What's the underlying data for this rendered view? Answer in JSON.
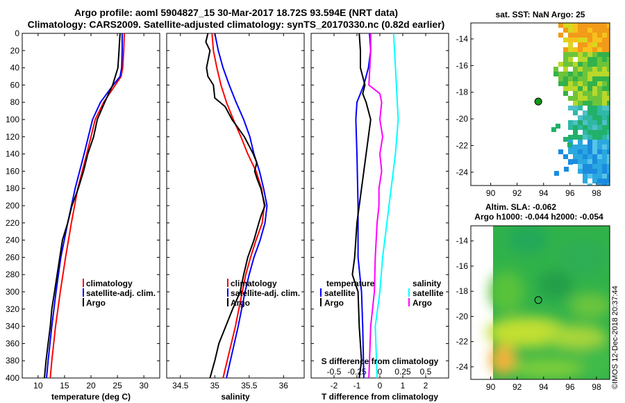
{
  "header": {
    "title_line1": "Argo profile: aoml 5904827_15 30-Mar-2017 18.72S 93.594E (NRT data)",
    "title_line2": "Climatology: CARS2009. Satellite-adjusted climatology: synTS_20170330.nc (0.82d earlier)"
  },
  "signature": "©IMOS 12-Dec-2018 20:37:44",
  "colors": {
    "climatology": "#ff0000",
    "satellite": "#0000ff",
    "argo": "#000000",
    "sat_T": "#00ffff",
    "argo_S": "#ff00ff"
  },
  "chart_data": [
    {
      "type": "line",
      "name": "temperature",
      "xlabel": "temperature (deg C)",
      "xlim": [
        7,
        33
      ],
      "ylim": [
        400,
        0
      ],
      "xticks": [
        10,
        15,
        20,
        25,
        30
      ],
      "yticks": [
        0,
        20,
        40,
        60,
        80,
        100,
        120,
        140,
        160,
        180,
        200,
        220,
        240,
        260,
        280,
        300,
        320,
        340,
        360,
        380,
        400
      ],
      "legend": [
        "climatology",
        "satellite-adj. clim.",
        "Argo"
      ],
      "series": [
        {
          "name": "climatology",
          "depth": [
            0,
            20,
            40,
            50,
            60,
            80,
            100,
            140,
            180,
            220,
            260,
            300,
            340,
            380,
            400
          ],
          "values": [
            26.3,
            26.2,
            26,
            25.7,
            24.6,
            22.4,
            20.8,
            19.2,
            17.5,
            16.3,
            15.2,
            14.2,
            13.3,
            12.6,
            12.3
          ]
        },
        {
          "name": "satellite-adj. clim.",
          "depth": [
            0,
            20,
            40,
            50,
            60,
            80,
            100,
            140,
            180,
            220,
            260,
            300,
            340,
            380,
            400
          ],
          "values": [
            25.9,
            25.9,
            25.8,
            25.5,
            24.2,
            21.8,
            20.3,
            18.7,
            17,
            15.6,
            14.3,
            13.4,
            12.6,
            11.9,
            11.6
          ]
        },
        {
          "name": "Argo",
          "depth": [
            0,
            10,
            20,
            40,
            60,
            80,
            100,
            120,
            140,
            160,
            180,
            200,
            220,
            240,
            260,
            280,
            300,
            320,
            340,
            360,
            380,
            400
          ],
          "values": [
            25.5,
            25.4,
            25.3,
            25.1,
            24.1,
            22.6,
            21.2,
            20.5,
            19.4,
            18.6,
            17.6,
            16.4,
            15.6,
            14.6,
            14.1,
            13.6,
            13.1,
            12.6,
            12.3,
            11.9,
            11.5,
            11.2
          ]
        }
      ]
    },
    {
      "type": "line",
      "name": "salinity",
      "xlabel": "salinity",
      "xlim": [
        34.3,
        36.3
      ],
      "ylim": [
        400,
        0
      ],
      "xticks": [
        34.5,
        35,
        35.5,
        36
      ],
      "xticklabels": [
        "34.5",
        "35",
        "35.5",
        "36"
      ],
      "legend": [
        "climatology",
        "satellite-adj. clim.",
        "Argo"
      ],
      "series": [
        {
          "name": "climatology",
          "depth": [
            0,
            20,
            40,
            60,
            80,
            100,
            120,
            140,
            160,
            180,
            200,
            220,
            240,
            260,
            280,
            300,
            340,
            400
          ],
          "values": [
            34.96,
            34.98,
            35.03,
            35.09,
            35.17,
            35.27,
            35.38,
            35.48,
            35.6,
            35.68,
            35.72,
            35.69,
            35.6,
            35.52,
            35.45,
            35.4,
            35.3,
            35.12
          ]
        },
        {
          "name": "satellite-adj. clim.",
          "depth": [
            0,
            20,
            40,
            60,
            80,
            100,
            120,
            140,
            160,
            180,
            200,
            220,
            240,
            260,
            280,
            300,
            340,
            400
          ],
          "values": [
            35.0,
            35.05,
            35.12,
            35.21,
            35.31,
            35.42,
            35.51,
            35.57,
            35.65,
            35.71,
            35.76,
            35.73,
            35.66,
            35.57,
            35.5,
            35.44,
            35.34,
            35.17
          ]
        },
        {
          "name": "Argo",
          "depth": [
            0,
            10,
            20,
            40,
            50,
            60,
            75,
            85,
            100,
            120,
            140,
            150,
            160,
            170,
            180,
            190,
            200,
            210,
            220,
            240,
            260,
            280,
            300,
            320,
            340,
            360,
            380,
            400
          ],
          "values": [
            34.9,
            34.87,
            34.93,
            34.88,
            34.9,
            34.98,
            35.0,
            35.15,
            35.25,
            35.43,
            35.56,
            35.61,
            35.58,
            35.62,
            35.67,
            35.7,
            35.73,
            35.68,
            35.64,
            35.57,
            35.48,
            35.42,
            35.37,
            35.26,
            35.16,
            35.06,
            35.0,
            34.93
          ]
        }
      ]
    },
    {
      "type": "line",
      "name": "difference",
      "xlabel": "T difference from climatology",
      "xlabel2": "S difference from climatology",
      "xlim": [
        -3,
        3
      ],
      "ylim": [
        400,
        0
      ],
      "xticks": [
        -2,
        -1,
        0,
        1,
        2
      ],
      "xticklabels_T": [
        "-2",
        "-1",
        "0",
        "1",
        "2"
      ],
      "xticks_S": [
        -0.5,
        -0.25,
        0,
        0.25,
        0.5
      ],
      "xticklabels_S": [
        "-0.5",
        "-0.25",
        "0",
        "0.25",
        "0.5"
      ],
      "legend_left_title": "temperature",
      "legend_right_title": "salinity",
      "legend": [
        "satellite",
        "Argo",
        "satellite",
        "Argo"
      ],
      "series": [
        {
          "name": "T satellite",
          "depth": [
            0,
            20,
            40,
            60,
            80,
            100,
            140,
            200,
            260,
            300,
            340,
            400
          ],
          "values": [
            -0.45,
            -0.4,
            -0.5,
            -0.7,
            -1.0,
            -1.05,
            -1.0,
            -0.95,
            -0.95,
            -0.8,
            -0.75,
            -0.7
          ]
        },
        {
          "name": "T Argo",
          "depth": [
            0,
            20,
            40,
            60,
            70,
            80,
            100,
            140,
            180,
            220,
            260,
            280,
            300,
            340,
            380,
            400
          ],
          "values": [
            -0.9,
            -0.85,
            -0.85,
            -0.65,
            -0.75,
            -0.6,
            -0.4,
            -0.6,
            -0.8,
            -1.0,
            -1.1,
            -1.2,
            -0.95,
            -0.9,
            -0.8,
            -0.9
          ]
        },
        {
          "name": "S satellite",
          "depth": [
            0,
            60,
            100,
            140,
            200,
            260,
            300,
            340,
            400
          ],
          "values": [
            0.15,
            0.18,
            0.2,
            0.17,
            0.1,
            0.03,
            0.0,
            -0.05,
            -0.03
          ]
        },
        {
          "name": "S Argo",
          "depth": [
            0,
            20,
            40,
            60,
            70,
            80,
            100,
            120,
            140,
            160,
            180,
            200,
            220,
            240,
            260,
            300,
            340,
            400
          ],
          "values": [
            -0.1,
            -0.1,
            -0.11,
            -0.12,
            0.0,
            0.02,
            0.0,
            0.03,
            0.0,
            0.02,
            -0.01,
            -0.01,
            -0.03,
            -0.04,
            -0.05,
            -0.06,
            -0.1,
            -0.12
          ]
        }
      ]
    },
    {
      "type": "heatmap",
      "name": "sst_map",
      "title": "sat. SST: NaN Argo: 25",
      "xlim": [
        88.5,
        99
      ],
      "ylim": [
        -25,
        -12.8
      ],
      "xticks": [
        90,
        92,
        94,
        96,
        98
      ],
      "yticks": [
        -14,
        -16,
        -18,
        -20,
        -22,
        -24
      ],
      "argo_lon": 93.6,
      "argo_lat": -18.7
    },
    {
      "type": "heatmap",
      "name": "sla_map",
      "title1": "Altim. SLA: -0.062",
      "title2": "Argo h1000: -0.044 h2000: -0.054",
      "xlim": [
        88.5,
        99
      ],
      "ylim": [
        -25,
        -12.8
      ],
      "xticks": [
        90,
        92,
        94,
        96,
        98
      ],
      "yticks": [
        -14,
        -16,
        -18,
        -20,
        -22,
        -24
      ],
      "argo_lon": 93.6,
      "argo_lat": -18.7
    }
  ]
}
